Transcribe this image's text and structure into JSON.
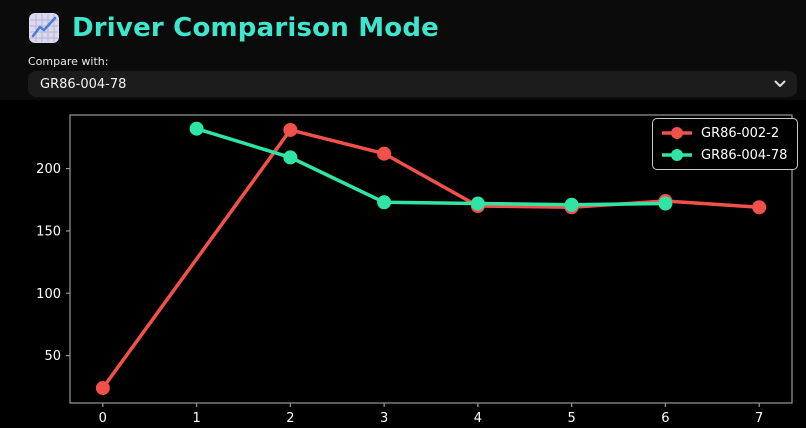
{
  "header": {
    "title": "Driver Comparison Mode",
    "icon": "chart-increasing"
  },
  "compare": {
    "label": "Compare with:",
    "selected": "GR86-004-78"
  },
  "colors": {
    "accent_title": "#3ee6cd",
    "page_background": "#0b0b0b",
    "chart_background": "#000000",
    "axis": "#999999",
    "tick_text": "#ffffff",
    "red_series": "#f2504b",
    "green_series": "#30e5a4"
  },
  "chart_data": {
    "type": "line",
    "title": "",
    "xlabel": "",
    "ylabel": "",
    "xlim": [
      -0.35,
      7.35
    ],
    "ylim": [
      12,
      243
    ],
    "xticks": [
      0,
      1,
      2,
      3,
      4,
      5,
      6,
      7
    ],
    "yticks": [
      50,
      100,
      150,
      200
    ],
    "grid": false,
    "legend_position": "upper right",
    "series": [
      {
        "name": "GR86-002-2",
        "color": "#f2504b",
        "x": [
          0,
          2,
          3,
          4,
          5,
          6,
          7
        ],
        "y": [
          24,
          231,
          212,
          170,
          169,
          174,
          169
        ]
      },
      {
        "name": "GR86-004-78",
        "color": "#30e5a4",
        "x": [
          1,
          2,
          3,
          4,
          5,
          6
        ],
        "y": [
          232,
          209,
          173,
          172,
          171,
          172
        ]
      }
    ]
  }
}
